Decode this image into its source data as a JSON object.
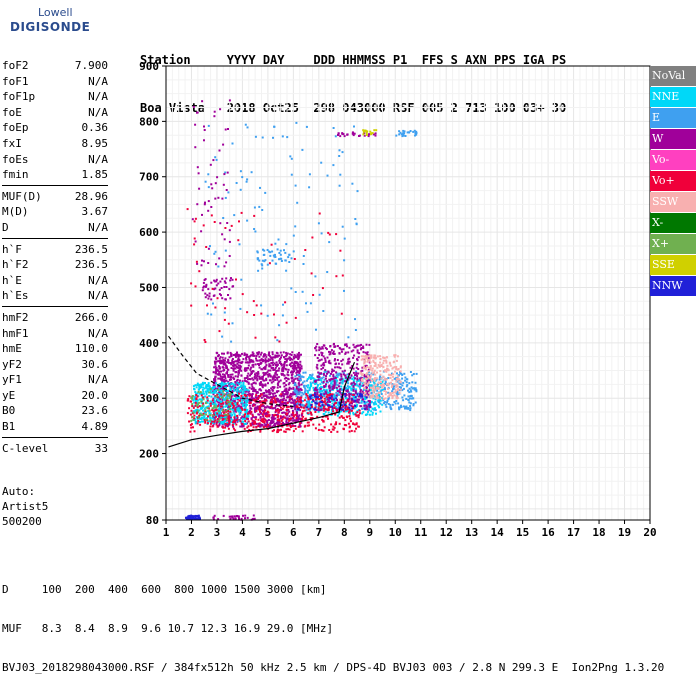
{
  "logo": {
    "line1": "Lowell",
    "line2": "DIGISONDE"
  },
  "header": {
    "row1": "Station     YYYY DAY    DDD HHMMSS P1  FFS S AXN PPS IGA PS",
    "row2": "Boa Vista   2018 Oct25  298 043000 RSF 005 2 713 100 03+ 30"
  },
  "params": {
    "group1": [
      {
        "k": "foF2",
        "v": "7.900"
      },
      {
        "k": "foF1",
        "v": "N/A"
      },
      {
        "k": "foF1p",
        "v": "N/A"
      },
      {
        "k": "foE",
        "v": "N/A"
      },
      {
        "k": "foEp",
        "v": "0.36"
      },
      {
        "k": "fxI",
        "v": "8.95"
      },
      {
        "k": "foEs",
        "v": "N/A"
      },
      {
        "k": "fmin",
        "v": "1.85"
      }
    ],
    "group2": [
      {
        "k": "MUF(D)",
        "v": "28.96"
      },
      {
        "k": "M(D)",
        "v": "3.67"
      },
      {
        "k": "D",
        "v": "N/A"
      }
    ],
    "group3": [
      {
        "k": "h`F",
        "v": "236.5"
      },
      {
        "k": "h`F2",
        "v": "236.5"
      },
      {
        "k": "h`E",
        "v": "N/A"
      },
      {
        "k": "h`Es",
        "v": "N/A"
      }
    ],
    "group4": [
      {
        "k": "hmF2",
        "v": "266.0"
      },
      {
        "k": "hmF1",
        "v": "N/A"
      },
      {
        "k": "hmE",
        "v": "110.0"
      },
      {
        "k": "yF2",
        "v": "30.6"
      },
      {
        "k": "yF1",
        "v": "N/A"
      },
      {
        "k": "yE",
        "v": "20.0"
      },
      {
        "k": "B0",
        "v": "23.6"
      },
      {
        "k": "B1",
        "v": "4.89"
      }
    ],
    "group5": [
      {
        "k": "C-level",
        "v": "33"
      }
    ]
  },
  "auto": {
    "line1": "Auto:",
    "line2": "Artist5",
    "line3": "500200"
  },
  "footer": {
    "line1": "D     100  200  400  600  800 1000 1500 3000 [km]",
    "line2": "MUF   8.3  8.4  8.9  9.6 10.7 12.3 16.9 29.0 [MHz]",
    "line3": "BVJ03_2018298043000.RSF / 384fx512h 50 kHz 2.5 km / DPS-4D BVJ03 003 / 2.8 N 299.3 E  Ion2Png 1.3.20"
  },
  "legend": [
    {
      "label": "NoVal",
      "color": "#808080"
    },
    {
      "label": "NNE",
      "color": "#00d8f8"
    },
    {
      "label": "E",
      "color": "#3fa0f0"
    },
    {
      "label": "W",
      "color": "#a0009a"
    },
    {
      "label": "Vo-",
      "color": "#ff40c0"
    },
    {
      "label": "Vo+",
      "color": "#f0003a"
    },
    {
      "label": "SSW",
      "color": "#f8b0b0"
    },
    {
      "label": "X-",
      "color": "#007800"
    },
    {
      "label": "X+",
      "color": "#70b050"
    },
    {
      "label": "SSE",
      "color": "#d0d000"
    },
    {
      "label": "NNW",
      "color": "#2020d8"
    }
  ],
  "chart_data": {
    "type": "scatter",
    "xlim": [
      1,
      20
    ],
    "ylim": [
      80,
      900
    ],
    "xticks": [
      "1",
      "2",
      "3",
      "4",
      "5",
      "6",
      "7",
      "8",
      "9",
      "10",
      "11",
      "12",
      "13",
      "14",
      "15",
      "16",
      "17",
      "18",
      "19",
      "20"
    ],
    "yticks": [
      "80",
      "200",
      "300",
      "400",
      "500",
      "600",
      "700",
      "800",
      "900"
    ],
    "grid": true,
    "clusters": [
      {
        "color": "#a0009a",
        "x": [
          2.8,
          6.3
        ],
        "y": [
          250,
          385
        ],
        "n": 1400
      },
      {
        "color": "#00d8f8",
        "x": [
          2.0,
          4.2
        ],
        "y": [
          255,
          330
        ],
        "n": 450
      },
      {
        "color": "#3fa0f0",
        "x": [
          6.0,
          10.8
        ],
        "y": [
          280,
          350
        ],
        "n": 500
      },
      {
        "color": "#00d8f8",
        "x": [
          6.5,
          9.5
        ],
        "y": [
          270,
          340
        ],
        "n": 300
      },
      {
        "color": "#a0009a",
        "x": [
          6.8,
          9.0
        ],
        "y": [
          280,
          400
        ],
        "n": 400
      },
      {
        "color": "#f8b0b0",
        "x": [
          8.6,
          10.2
        ],
        "y": [
          300,
          380
        ],
        "n": 250
      },
      {
        "color": "#f0003a",
        "x": [
          1.8,
          8.6
        ],
        "y": [
          240,
          310
        ],
        "n": 500
      },
      {
        "color": "#2020d8",
        "x": [
          6.0,
          9.0
        ],
        "y": [
          280,
          310
        ],
        "n": 60
      },
      {
        "color": "#70b050",
        "x": [
          1.9,
          3.5
        ],
        "y": [
          260,
          320
        ],
        "n": 60
      },
      {
        "color": "#a0009a",
        "x": [
          2.4,
          3.6
        ],
        "y": [
          480,
          520
        ],
        "n": 50
      },
      {
        "color": "#3fa0f0",
        "x": [
          4.5,
          6.0
        ],
        "y": [
          540,
          570
        ],
        "n": 40
      },
      {
        "color": "#3fa0f0",
        "x": [
          2.5,
          8.5
        ],
        "y": [
          400,
          800
        ],
        "n": 120
      },
      {
        "color": "#a0009a",
        "x": [
          2.0,
          3.5
        ],
        "y": [
          540,
          840
        ],
        "n": 60
      },
      {
        "color": "#f0003a",
        "x": [
          1.8,
          8.0
        ],
        "y": [
          400,
          650
        ],
        "n": 60
      },
      {
        "color": "#a0009a",
        "x": [
          7.7,
          9.2
        ],
        "y": [
          775,
          782
        ],
        "n": 30
      },
      {
        "color": "#3fa0f0",
        "x": [
          10.0,
          10.8
        ],
        "y": [
          775,
          785
        ],
        "n": 25
      },
      {
        "color": "#2020d8",
        "x": [
          1.7,
          2.3
        ],
        "y": [
          83,
          90
        ],
        "n": 50
      },
      {
        "color": "#a0009a",
        "x": [
          2.8,
          4.5
        ],
        "y": [
          82,
          90
        ],
        "n": 30
      },
      {
        "color": "#d0d000",
        "x": [
          8.7,
          9.3
        ],
        "y": [
          776,
          786
        ],
        "n": 15
      }
    ],
    "curves": [
      {
        "style": "solid",
        "x": [
          1.1,
          2.0,
          3.0,
          4.0,
          5.0,
          6.0,
          7.0,
          7.8,
          8.0,
          8.4
        ],
        "y": [
          212,
          225,
          233,
          240,
          245,
          255,
          265,
          275,
          320,
          365
        ]
      },
      {
        "style": "dashed",
        "x": [
          1.1,
          1.6,
          2.2,
          3.0,
          4.0,
          5.0,
          6.0
        ],
        "y": [
          412,
          380,
          345,
          325,
          300,
          290,
          285
        ]
      }
    ]
  }
}
